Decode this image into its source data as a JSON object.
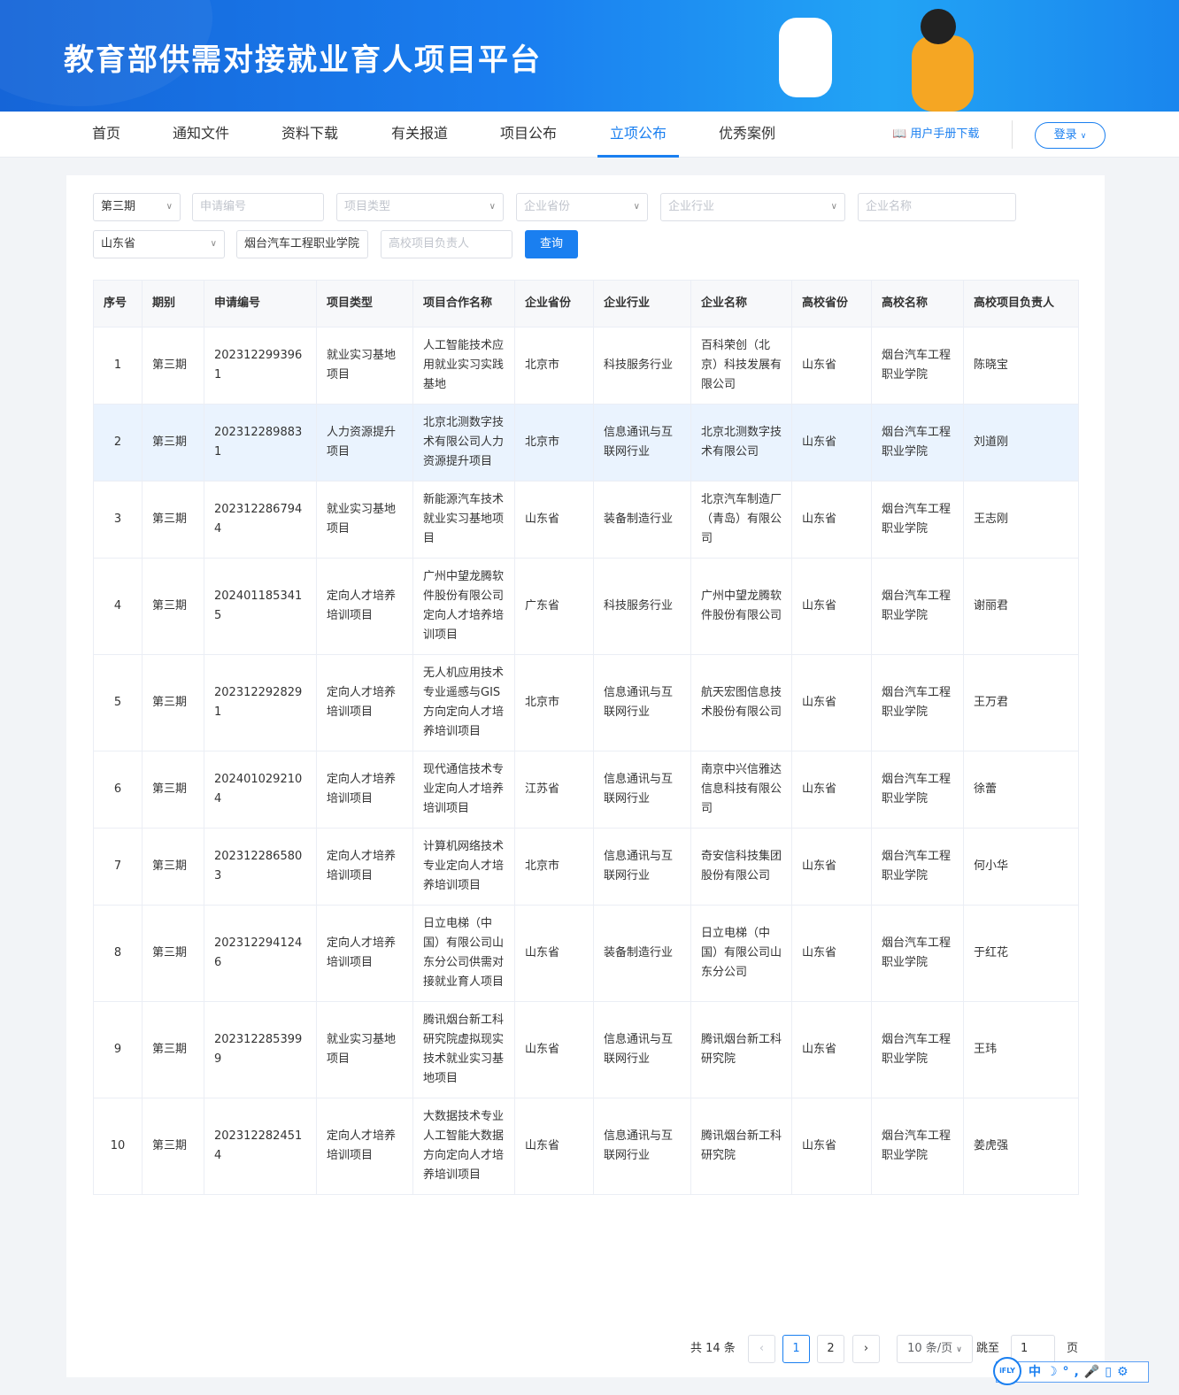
{
  "header": {
    "title": "教育部供需对接就业育人项目平台"
  },
  "nav": {
    "items": [
      "首页",
      "通知文件",
      "资料下载",
      "有关报道",
      "项目公布",
      "立项公布",
      "优秀案例"
    ],
    "active": "立项公布",
    "manual": "用户手册下载",
    "login": "登录"
  },
  "filters": {
    "period": "第三期",
    "app_no_ph": "申请编号",
    "type_ph": "项目类型",
    "ent_prov_ph": "企业省份",
    "industry_ph": "企业行业",
    "ent_name_ph": "企业名称",
    "school_prov": "山东省",
    "school_name": "烟台汽车工程职业学院",
    "leader_ph": "高校项目负责人",
    "query": "查询"
  },
  "table": {
    "headers": [
      "序号",
      "期别",
      "申请编号",
      "项目类型",
      "项目合作名称",
      "企业省份",
      "企业行业",
      "企业名称",
      "高校省份",
      "高校名称",
      "高校项目负责人"
    ],
    "rows": [
      [
        "1",
        "第三期",
        "2023122993961",
        "就业实习基地项目",
        "人工智能技术应用就业实习实践基地",
        "北京市",
        "科技服务行业",
        "百科荣创（北京）科技发展有限公司",
        "山东省",
        "烟台汽车工程职业学院",
        "陈晓宝"
      ],
      [
        "2",
        "第三期",
        "2023122898831",
        "人力资源提升项目",
        "北京北测数字技术有限公司人力资源提升项目",
        "北京市",
        "信息通讯与互联网行业",
        "北京北测数字技术有限公司",
        "山东省",
        "烟台汽车工程职业学院",
        "刘道刚"
      ],
      [
        "3",
        "第三期",
        "2023122867944",
        "就业实习基地项目",
        "新能源汽车技术就业实习基地项目",
        "山东省",
        "装备制造行业",
        "北京汽车制造厂（青岛）有限公司",
        "山东省",
        "烟台汽车工程职业学院",
        "王志刚"
      ],
      [
        "4",
        "第三期",
        "2024011853415",
        "定向人才培养培训项目",
        "广州中望龙腾软件股份有限公司定向人才培养培训项目",
        "广东省",
        "科技服务行业",
        "广州中望龙腾软件股份有限公司",
        "山东省",
        "烟台汽车工程职业学院",
        "谢丽君"
      ],
      [
        "5",
        "第三期",
        "2023122928291",
        "定向人才培养培训项目",
        "无人机应用技术专业遥感与GIS方向定向人才培养培训项目",
        "北京市",
        "信息通讯与互联网行业",
        "航天宏图信息技术股份有限公司",
        "山东省",
        "烟台汽车工程职业学院",
        "王万君"
      ],
      [
        "6",
        "第三期",
        "2024010292104",
        "定向人才培养培训项目",
        "现代通信技术专业定向人才培养培训项目",
        "江苏省",
        "信息通讯与互联网行业",
        "南京中兴信雅达信息科技有限公司",
        "山东省",
        "烟台汽车工程职业学院",
        "徐蕾"
      ],
      [
        "7",
        "第三期",
        "2023122865803",
        "定向人才培养培训项目",
        "计算机网络技术专业定向人才培养培训项目",
        "北京市",
        "信息通讯与互联网行业",
        "奇安信科技集团股份有限公司",
        "山东省",
        "烟台汽车工程职业学院",
        "何小华"
      ],
      [
        "8",
        "第三期",
        "2023122941246",
        "定向人才培养培训项目",
        "日立电梯（中国）有限公司山东分公司供需对接就业育人项目",
        "山东省",
        "装备制造行业",
        "日立电梯（中国）有限公司山东分公司",
        "山东省",
        "烟台汽车工程职业学院",
        "于红花"
      ],
      [
        "9",
        "第三期",
        "2023122853999",
        "就业实习基地项目",
        "腾讯烟台新工科研究院虚拟现实技术就业实习基地项目",
        "山东省",
        "信息通讯与互联网行业",
        "腾讯烟台新工科研究院",
        "山东省",
        "烟台汽车工程职业学院",
        "王玮"
      ],
      [
        "10",
        "第三期",
        "2023122824514",
        "定向人才培养培训项目",
        "大数据技术专业人工智能大数据方向定向人才培养培训项目",
        "山东省",
        "信息通讯与互联网行业",
        "腾讯烟台新工科研究院",
        "山东省",
        "烟台汽车工程职业学院",
        "姜虎强"
      ]
    ]
  },
  "pagination": {
    "total": "共 14 条",
    "pages": [
      "1",
      "2"
    ],
    "current": "1",
    "page_size": "10 条/页",
    "jump_label": "跳至",
    "jump_value": "1",
    "page_unit": "页"
  },
  "ifly": {
    "logo": "iFLY",
    "tools": "中☽°,🎤▯⚙"
  },
  "colors": {
    "accent": "#1a7ff0",
    "highlight_row": "#eaf3fe"
  }
}
